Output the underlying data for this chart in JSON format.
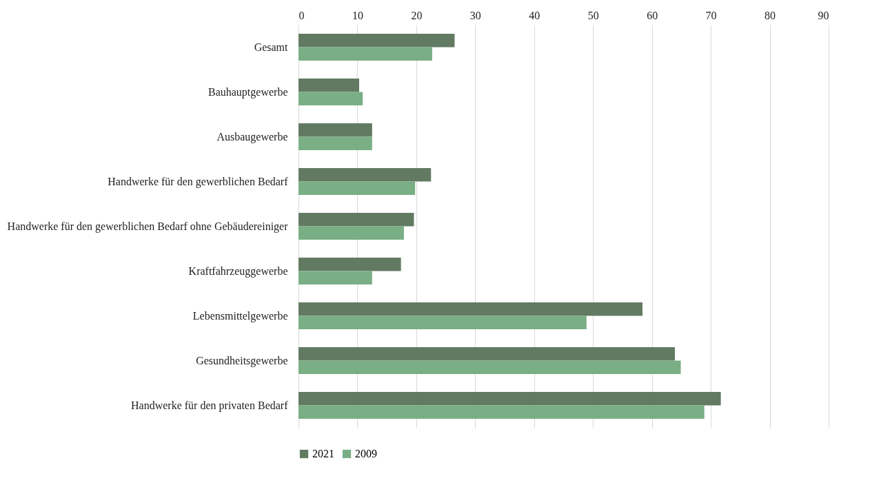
{
  "chart_data": {
    "type": "bar",
    "orientation": "horizontal",
    "categories": [
      "Gesamt",
      "Bauhauptgewerbe",
      "Ausbaugewerbe",
      "Handwerke für den gewerblichen Bedarf",
      "Handwerke für den gewerblichen Bedarf ohne Gebäudereiniger",
      "Kraftfahrzeuggewerbe",
      "Lebensmittelgewerbe",
      "Gesundheitsgewerbe",
      "Handwerke für den privaten Bedarf"
    ],
    "series": [
      {
        "name": "2021",
        "color": "#637a62",
        "values": [
          26.5,
          10.3,
          12.5,
          22.5,
          19.6,
          17.4,
          58.4,
          63.9,
          71.7
        ]
      },
      {
        "name": "2009",
        "color": "#7aae85",
        "values": [
          22.7,
          10.9,
          12.5,
          19.8,
          17.9,
          12.5,
          48.9,
          64.9,
          68.9
        ]
      }
    ],
    "xlim": [
      0,
      90
    ],
    "xticks": [
      0,
      10,
      20,
      30,
      40,
      50,
      60,
      70,
      80,
      90
    ],
    "grid": "x",
    "legend": "bottom"
  }
}
